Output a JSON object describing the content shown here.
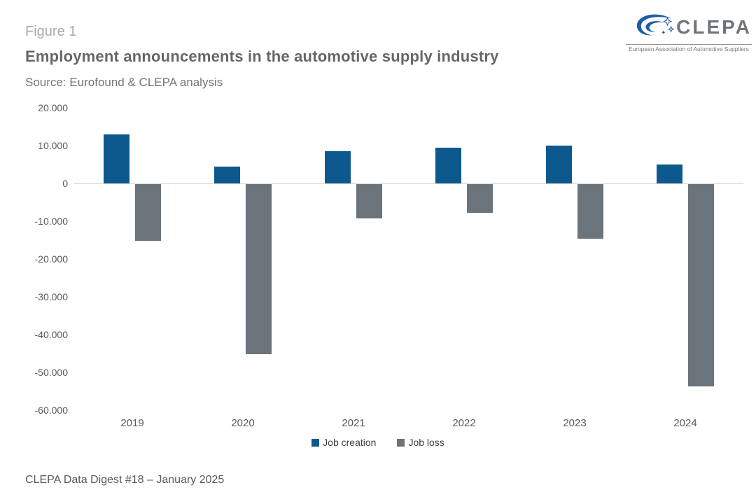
{
  "header": {
    "figure_label": "Figure 1",
    "title": "Employment announcements in the automotive supply industry",
    "source": "Source: Eurofound & CLEPA analysis"
  },
  "logo": {
    "name": "CLEPA",
    "tagline": "European Association of Automotive Suppliers",
    "icon_blue": "#1e5ea6",
    "text_gray": "#6f757a"
  },
  "chart_data": {
    "type": "bar",
    "title": "Employment announcements in the automotive supply industry",
    "xlabel": "",
    "ylabel": "",
    "categories": [
      "2019",
      "2020",
      "2021",
      "2022",
      "2023",
      "2024"
    ],
    "series": [
      {
        "name": "Job creation",
        "color": "#0d598d",
        "values": [
          13000,
          4500,
          8500,
          9500,
          10000,
          5000
        ]
      },
      {
        "name": "Job loss",
        "color": "#6b737b",
        "values": [
          -15000,
          -45000,
          -9000,
          -7500,
          -14500,
          -53500
        ]
      }
    ],
    "ylim": [
      -60000,
      20000
    ],
    "y_ticks": [
      {
        "label": "20.000",
        "value": 20000
      },
      {
        "label": "10.000",
        "value": 10000
      },
      {
        "label": "0",
        "value": 0
      },
      {
        "label": "-10.000",
        "value": -10000
      },
      {
        "label": "-20.000",
        "value": -20000
      },
      {
        "label": "-30.000",
        "value": -30000
      },
      {
        "label": "-40.000",
        "value": -40000
      },
      {
        "label": "-50.000",
        "value": -50000
      },
      {
        "label": "-60.000",
        "value": -60000
      }
    ],
    "grid": false,
    "legend_position": "bottom"
  },
  "legend": [
    {
      "label": "Job creation",
      "color": "#0d598d"
    },
    {
      "label": "Job loss",
      "color": "#6b737b"
    }
  ],
  "footer": {
    "text": "CLEPA Data Digest #18 – January 2025"
  }
}
